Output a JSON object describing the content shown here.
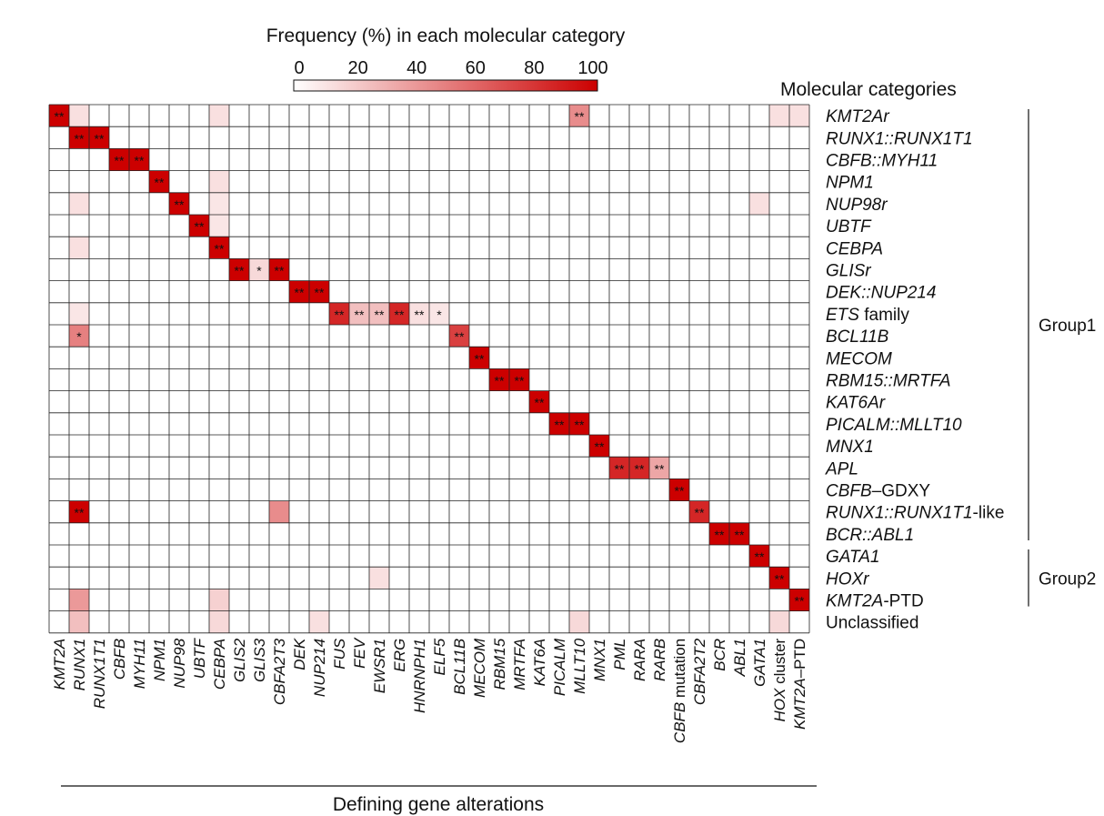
{
  "chart_data": {
    "type": "heatmap",
    "legend": {
      "title": "Frequency (%) in each molecular category",
      "ticks": [
        "0",
        "20",
        "40",
        "60",
        "80",
        "100"
      ],
      "min": 0,
      "max": 100,
      "color_low": "#ffffff",
      "color_high": "#cc0000"
    },
    "row_header": "Molecular categories",
    "xlabel": "Defining gene alterations",
    "columns": [
      {
        "label": "KMT2A",
        "italic": true
      },
      {
        "label": "RUNX1",
        "italic": true
      },
      {
        "label": "RUNX1T1",
        "italic": true
      },
      {
        "label": "CBFB",
        "italic": true
      },
      {
        "label": "MYH11",
        "italic": true
      },
      {
        "label": "NPM1",
        "italic": true
      },
      {
        "label": "NUP98",
        "italic": true
      },
      {
        "label": "UBTF",
        "italic": true
      },
      {
        "label": "CEBPA",
        "italic": true
      },
      {
        "label": "GLIS2",
        "italic": true
      },
      {
        "label": "GLIS3",
        "italic": true
      },
      {
        "label": "CBFA2T3",
        "italic": true
      },
      {
        "label": "DEK",
        "italic": true
      },
      {
        "label": "NUP214",
        "italic": true
      },
      {
        "label": "FUS",
        "italic": true
      },
      {
        "label": "FEV",
        "italic": true
      },
      {
        "label": "EWSR1",
        "italic": true
      },
      {
        "label": "ERG",
        "italic": true
      },
      {
        "label": "HNRNPH1",
        "italic": true
      },
      {
        "label": "ELF5",
        "italic": true
      },
      {
        "label": "BCL11B",
        "italic": true
      },
      {
        "label": "MECOM",
        "italic": true
      },
      {
        "label": "RBM15",
        "italic": true
      },
      {
        "label": "MRTFA",
        "italic": true
      },
      {
        "label": "KAT6A",
        "italic": true
      },
      {
        "label": "PICALM",
        "italic": true
      },
      {
        "label": "MLLT10",
        "italic": true
      },
      {
        "label": "MNX1",
        "italic": true
      },
      {
        "label": "PML",
        "italic": true
      },
      {
        "label": "RARA",
        "italic": true
      },
      {
        "label": "RARB",
        "italic": true
      },
      {
        "parts": [
          {
            "t": "CBFB",
            "i": true
          },
          {
            "t": " mutation",
            "i": false
          }
        ]
      },
      {
        "label": "CBFA2T2",
        "italic": true
      },
      {
        "label": "BCR",
        "italic": true
      },
      {
        "label": "ABL1",
        "italic": true
      },
      {
        "label": "GATA1",
        "italic": true
      },
      {
        "parts": [
          {
            "t": "HOX",
            "i": true
          },
          {
            "t": " cluster",
            "i": false
          }
        ]
      },
      {
        "parts": [
          {
            "t": "KMT2A",
            "i": true
          },
          {
            "t": "–PTD",
            "i": false
          }
        ]
      }
    ],
    "rows": [
      {
        "parts": [
          {
            "t": "KMT2Ar",
            "i": true
          }
        ]
      },
      {
        "parts": [
          {
            "t": "RUNX1::RUNX1T1",
            "i": true
          }
        ]
      },
      {
        "parts": [
          {
            "t": "CBFB::MYH11",
            "i": true
          }
        ]
      },
      {
        "parts": [
          {
            "t": "NPM1",
            "i": true
          }
        ]
      },
      {
        "parts": [
          {
            "t": "NUP98r",
            "i": true
          }
        ]
      },
      {
        "parts": [
          {
            "t": "UBTF",
            "i": true
          }
        ]
      },
      {
        "parts": [
          {
            "t": "CEBPA",
            "i": true
          }
        ]
      },
      {
        "parts": [
          {
            "t": "GLISr",
            "i": true
          }
        ]
      },
      {
        "parts": [
          {
            "t": "DEK::NUP214",
            "i": true
          }
        ]
      },
      {
        "parts": [
          {
            "t": "ETS",
            "i": true
          },
          {
            "t": " family",
            "i": false
          }
        ]
      },
      {
        "parts": [
          {
            "t": "BCL11B",
            "i": true
          }
        ]
      },
      {
        "parts": [
          {
            "t": "MECOM",
            "i": true
          }
        ]
      },
      {
        "parts": [
          {
            "t": "RBM15::MRTFA",
            "i": true
          }
        ]
      },
      {
        "parts": [
          {
            "t": "KAT6Ar",
            "i": true
          }
        ]
      },
      {
        "parts": [
          {
            "t": "PICALM::MLLT10",
            "i": true
          }
        ]
      },
      {
        "parts": [
          {
            "t": "MNX1",
            "i": true
          }
        ]
      },
      {
        "parts": [
          {
            "t": "APL",
            "i": true
          }
        ]
      },
      {
        "parts": [
          {
            "t": "CBFB",
            "i": true
          },
          {
            "t": "–GDXY",
            "i": false
          }
        ]
      },
      {
        "parts": [
          {
            "t": "RUNX1::RUNX1T1",
            "i": true
          },
          {
            "t": "-like",
            "i": false
          }
        ]
      },
      {
        "parts": [
          {
            "t": "BCR::ABL1",
            "i": true
          }
        ]
      },
      {
        "parts": [
          {
            "t": "GATA1",
            "i": true
          }
        ]
      },
      {
        "parts": [
          {
            "t": "HOXr",
            "i": true
          }
        ]
      },
      {
        "parts": [
          {
            "t": "KMT2A",
            "i": true
          },
          {
            "t": "-PTD",
            "i": false
          }
        ]
      },
      {
        "parts": [
          {
            "t": "Unclassified",
            "i": false
          }
        ]
      }
    ],
    "groups": [
      {
        "label": "Group1",
        "row_start": 0,
        "row_end": 19
      },
      {
        "label": "Group2",
        "row_start": 20,
        "row_end": 22
      }
    ],
    "cells": [
      {
        "r": 0,
        "c": 0,
        "v": 100,
        "sig": "**"
      },
      {
        "r": 0,
        "c": 1,
        "v": 12
      },
      {
        "r": 0,
        "c": 8,
        "v": 12
      },
      {
        "r": 0,
        "c": 26,
        "v": 45,
        "sig": "**"
      },
      {
        "r": 0,
        "c": 36,
        "v": 12
      },
      {
        "r": 0,
        "c": 37,
        "v": 12
      },
      {
        "r": 1,
        "c": 1,
        "v": 100,
        "sig": "**"
      },
      {
        "r": 1,
        "c": 2,
        "v": 100,
        "sig": "**"
      },
      {
        "r": 2,
        "c": 3,
        "v": 100,
        "sig": "**"
      },
      {
        "r": 2,
        "c": 4,
        "v": 100,
        "sig": "**"
      },
      {
        "r": 3,
        "c": 5,
        "v": 100,
        "sig": "**"
      },
      {
        "r": 3,
        "c": 8,
        "v": 12
      },
      {
        "r": 4,
        "c": 1,
        "v": 12
      },
      {
        "r": 4,
        "c": 6,
        "v": 100,
        "sig": "**"
      },
      {
        "r": 4,
        "c": 8,
        "v": 10
      },
      {
        "r": 4,
        "c": 35,
        "v": 12
      },
      {
        "r": 5,
        "c": 7,
        "v": 100,
        "sig": "**"
      },
      {
        "r": 5,
        "c": 8,
        "v": 10
      },
      {
        "r": 6,
        "c": 1,
        "v": 12
      },
      {
        "r": 6,
        "c": 8,
        "v": 100,
        "sig": "**"
      },
      {
        "r": 7,
        "c": 9,
        "v": 100,
        "sig": "**"
      },
      {
        "r": 7,
        "c": 10,
        "v": 15,
        "sig": "*"
      },
      {
        "r": 7,
        "c": 11,
        "v": 100,
        "sig": "**"
      },
      {
        "r": 8,
        "c": 12,
        "v": 100,
        "sig": "**"
      },
      {
        "r": 8,
        "c": 13,
        "v": 100,
        "sig": "**"
      },
      {
        "r": 9,
        "c": 1,
        "v": 10
      },
      {
        "r": 9,
        "c": 14,
        "v": 85,
        "sig": "**"
      },
      {
        "r": 9,
        "c": 15,
        "v": 25,
        "sig": "**"
      },
      {
        "r": 9,
        "c": 16,
        "v": 25,
        "sig": "**"
      },
      {
        "r": 9,
        "c": 17,
        "v": 85,
        "sig": "**"
      },
      {
        "r": 9,
        "c": 18,
        "v": 12,
        "sig": "**"
      },
      {
        "r": 9,
        "c": 19,
        "v": 10,
        "sig": "*"
      },
      {
        "r": 10,
        "c": 1,
        "v": 50,
        "sig": "*"
      },
      {
        "r": 10,
        "c": 20,
        "v": 75,
        "sig": "**"
      },
      {
        "r": 11,
        "c": 21,
        "v": 100,
        "sig": "**"
      },
      {
        "r": 12,
        "c": 22,
        "v": 100,
        "sig": "**"
      },
      {
        "r": 12,
        "c": 23,
        "v": 100,
        "sig": "**"
      },
      {
        "r": 13,
        "c": 24,
        "v": 100,
        "sig": "**"
      },
      {
        "r": 14,
        "c": 25,
        "v": 100,
        "sig": "**"
      },
      {
        "r": 14,
        "c": 26,
        "v": 100,
        "sig": "**"
      },
      {
        "r": 15,
        "c": 27,
        "v": 100,
        "sig": "**"
      },
      {
        "r": 16,
        "c": 28,
        "v": 85,
        "sig": "**"
      },
      {
        "r": 16,
        "c": 29,
        "v": 85,
        "sig": "**"
      },
      {
        "r": 16,
        "c": 30,
        "v": 35,
        "sig": "**"
      },
      {
        "r": 17,
        "c": 31,
        "v": 100,
        "sig": "**"
      },
      {
        "r": 18,
        "c": 1,
        "v": 100,
        "sig": "**"
      },
      {
        "r": 18,
        "c": 11,
        "v": 45
      },
      {
        "r": 18,
        "c": 32,
        "v": 85,
        "sig": "**"
      },
      {
        "r": 19,
        "c": 33,
        "v": 100,
        "sig": "**"
      },
      {
        "r": 19,
        "c": 34,
        "v": 100,
        "sig": "**"
      },
      {
        "r": 20,
        "c": 35,
        "v": 100,
        "sig": "**"
      },
      {
        "r": 21,
        "c": 16,
        "v": 12
      },
      {
        "r": 21,
        "c": 36,
        "v": 100,
        "sig": "**"
      },
      {
        "r": 22,
        "c": 1,
        "v": 40
      },
      {
        "r": 22,
        "c": 8,
        "v": 18
      },
      {
        "r": 22,
        "c": 37,
        "v": 100,
        "sig": "**"
      },
      {
        "r": 23,
        "c": 1,
        "v": 25
      },
      {
        "r": 23,
        "c": 8,
        "v": 15
      },
      {
        "r": 23,
        "c": 13,
        "v": 12
      },
      {
        "r": 23,
        "c": 26,
        "v": 15
      },
      {
        "r": 23,
        "c": 36,
        "v": 15
      }
    ]
  }
}
